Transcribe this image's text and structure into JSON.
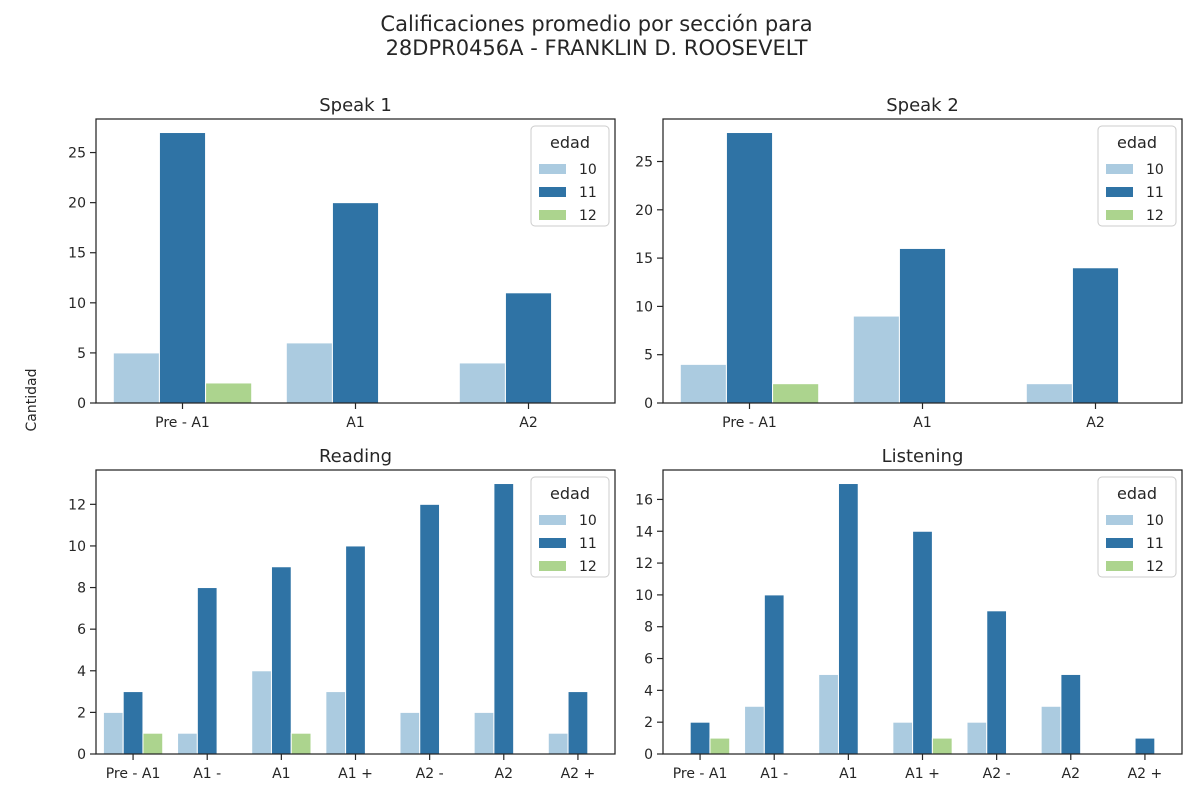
{
  "title": "Calificaciones promedio por sección para\n 28DPR0456A - FRANKLIN D. ROOSEVELT",
  "ylabel": "Cantidad",
  "colors": {
    "10": "#abcbe0",
    "11": "#2f73a5",
    "12": "#acd48e"
  },
  "chart_data": [
    {
      "type": "bar",
      "title": "Speak 1",
      "categories": [
        "Pre - A1",
        "A1",
        "A2"
      ],
      "series": [
        {
          "name": "10",
          "values": [
            5,
            6,
            4
          ]
        },
        {
          "name": "11",
          "values": [
            27,
            20,
            11
          ]
        },
        {
          "name": "12",
          "values": [
            2,
            0,
            0
          ]
        }
      ],
      "ylim": [
        0,
        28.35
      ],
      "yticks": [
        0,
        5,
        10,
        15,
        20,
        25
      ],
      "legend": {
        "title": "edad",
        "position": "upper right"
      }
    },
    {
      "type": "bar",
      "title": "Speak 2",
      "categories": [
        "Pre - A1",
        "A1",
        "A2"
      ],
      "series": [
        {
          "name": "10",
          "values": [
            4,
            9,
            2
          ]
        },
        {
          "name": "11",
          "values": [
            28,
            16,
            14
          ]
        },
        {
          "name": "12",
          "values": [
            2,
            0,
            0
          ]
        }
      ],
      "ylim": [
        0,
        29.4
      ],
      "yticks": [
        0,
        5,
        10,
        15,
        20,
        25
      ],
      "legend": {
        "title": "edad",
        "position": "upper right"
      }
    },
    {
      "type": "bar",
      "title": "Reading",
      "categories": [
        "Pre - A1",
        "A1 -",
        "A1",
        "A1 +",
        "A2 -",
        "A2",
        "A2 +"
      ],
      "series": [
        {
          "name": "10",
          "values": [
            2,
            1,
            4,
            3,
            2,
            2,
            1
          ]
        },
        {
          "name": "11",
          "values": [
            3,
            8,
            9,
            10,
            12,
            13,
            3
          ]
        },
        {
          "name": "12",
          "values": [
            1,
            0,
            1,
            0,
            0,
            0,
            0
          ]
        }
      ],
      "ylim": [
        0,
        13.65
      ],
      "yticks": [
        0,
        2,
        4,
        6,
        8,
        10,
        12
      ],
      "legend": {
        "title": "edad",
        "position": "upper right"
      }
    },
    {
      "type": "bar",
      "title": "Listening",
      "categories": [
        "Pre - A1",
        "A1 -",
        "A1",
        "A1 +",
        "A2 -",
        "A2",
        "A2 +"
      ],
      "series": [
        {
          "name": "10",
          "values": [
            0,
            3,
            5,
            2,
            2,
            3,
            0
          ]
        },
        {
          "name": "11",
          "values": [
            2,
            10,
            17,
            14,
            9,
            5,
            1
          ]
        },
        {
          "name": "12",
          "values": [
            1,
            0,
            0,
            1,
            0,
            0,
            0
          ]
        }
      ],
      "ylim": [
        0,
        17.85
      ],
      "yticks": [
        0,
        2,
        4,
        6,
        8,
        10,
        12,
        14,
        16
      ],
      "legend": {
        "title": "edad",
        "position": "upper right"
      }
    }
  ]
}
